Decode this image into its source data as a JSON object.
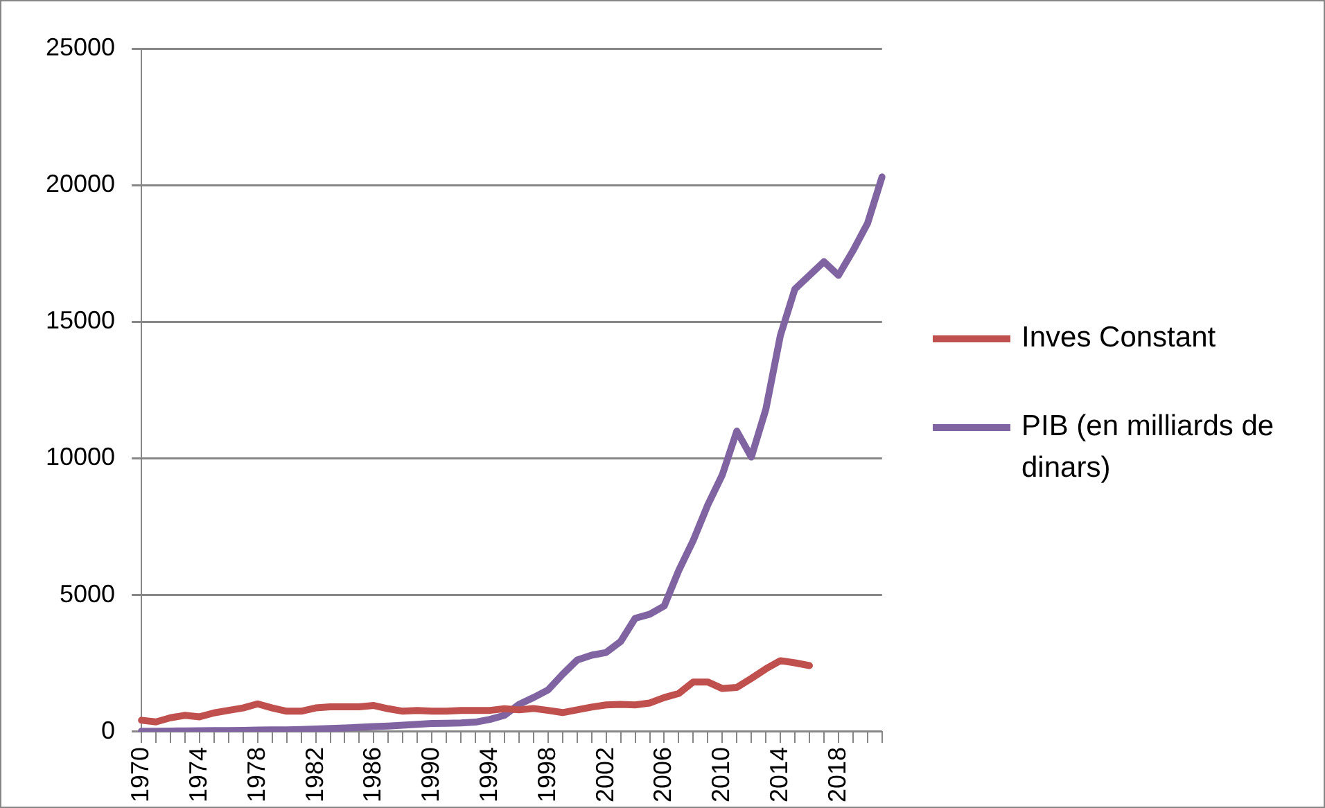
{
  "chart_data": {
    "type": "line",
    "categories": [
      "1970",
      null,
      null,
      null,
      "1974",
      null,
      null,
      null,
      "1978",
      null,
      null,
      null,
      "1982",
      null,
      null,
      null,
      "1986",
      null,
      null,
      null,
      "1990",
      null,
      null,
      null,
      "1994",
      null,
      null,
      null,
      "1998",
      null,
      null,
      null,
      "2002",
      null,
      null,
      null,
      "2006",
      null,
      null,
      null,
      "2010",
      null,
      null,
      null,
      "2014",
      null,
      null,
      null,
      "2018",
      null,
      null,
      null
    ],
    "series": [
      {
        "name": "Inves Constant",
        "color": "#c0504d",
        "values": [
          420,
          360,
          510,
          600,
          545,
          690,
          780,
          870,
          1020,
          870,
          750,
          750,
          870,
          910,
          910,
          910,
          960,
          840,
          750,
          780,
          750,
          750,
          780,
          780,
          780,
          840,
          800,
          850,
          780,
          700,
          800,
          900,
          980,
          1000,
          980,
          1050,
          1250,
          1400,
          1820,
          1820,
          1580,
          1620,
          1950,
          2300,
          2600,
          2520,
          2420,
          null,
          null,
          null,
          null,
          null
        ]
      },
      {
        "name": "PIB (en milliards de dinars)",
        "color": "#8064a2",
        "values": [
          20,
          20,
          25,
          30,
          35,
          40,
          45,
          50,
          60,
          65,
          70,
          80,
          100,
          120,
          140,
          160,
          190,
          210,
          240,
          270,
          300,
          310,
          320,
          350,
          450,
          600,
          1000,
          1250,
          1530,
          2100,
          2620,
          2800,
          2900,
          3300,
          4150,
          4300,
          4600,
          5900,
          7000,
          8300,
          9400,
          11000,
          10050,
          11800,
          14500,
          16200,
          16700,
          17200,
          16700,
          17600,
          18600,
          20300
        ]
      }
    ],
    "ylim": [
      0,
      25000
    ],
    "yticks": [
      0,
      5000,
      10000,
      15000,
      20000,
      25000
    ],
    "grid": "y",
    "legend": "right",
    "marker": "none",
    "line_style": "solid"
  }
}
